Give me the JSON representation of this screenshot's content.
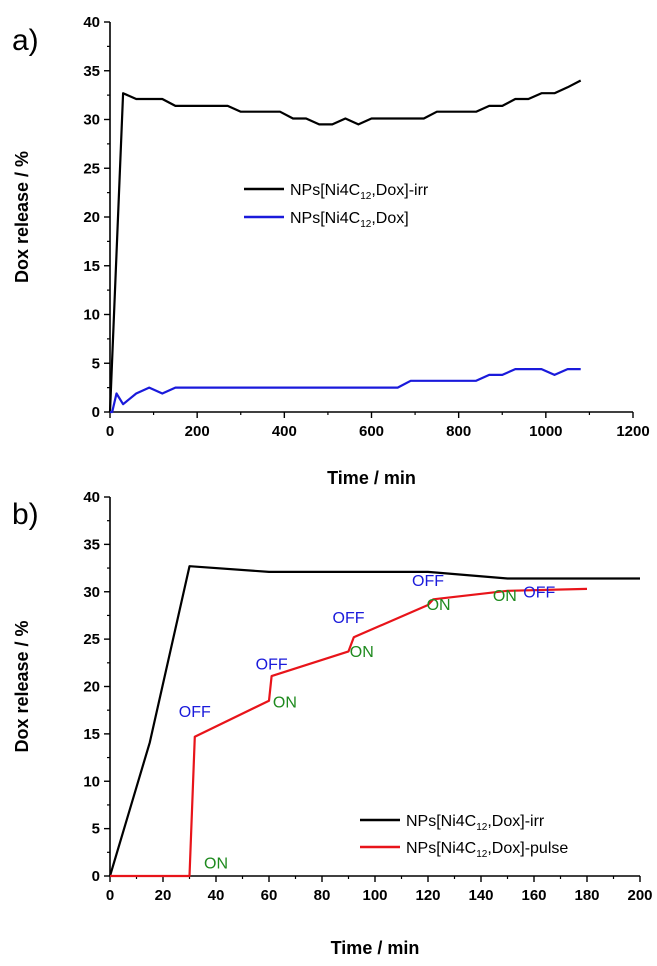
{
  "chart_data": [
    {
      "panel": "a)",
      "type": "line",
      "xlabel": "Time / min",
      "ylabel": "Dox release / %",
      "xlim": [
        0,
        1200
      ],
      "ylim": [
        0,
        40
      ],
      "xticks": [
        0,
        200,
        400,
        600,
        800,
        1000,
        1200
      ],
      "yticks": [
        0,
        5,
        10,
        15,
        20,
        25,
        30,
        35,
        40
      ],
      "grid": false,
      "legend_position": "center-right",
      "series": [
        {
          "name": "NPs[Ni4C12,Dox]-irr",
          "legend": {
            "prefix": "NPs[Ni4C",
            "sub": "12",
            "suffix": ",Dox]-irr"
          },
          "color": "#000000",
          "x": [
            0,
            30,
            60,
            90,
            120,
            150,
            180,
            210,
            240,
            270,
            300,
            330,
            360,
            390,
            420,
            450,
            480,
            510,
            540,
            570,
            600,
            630,
            660,
            690,
            720,
            750,
            780,
            810,
            840,
            870,
            900,
            930,
            960,
            990,
            1020,
            1050,
            1080
          ],
          "y": [
            0,
            32.7,
            32.1,
            32.1,
            32.1,
            31.4,
            31.4,
            31.4,
            31.4,
            31.4,
            30.8,
            30.8,
            30.8,
            30.8,
            30.1,
            30.1,
            29.5,
            29.5,
            30.1,
            29.5,
            30.1,
            30.1,
            30.1,
            30.1,
            30.1,
            30.8,
            30.8,
            30.8,
            30.8,
            31.4,
            31.4,
            32.1,
            32.1,
            32.7,
            32.7,
            33.3,
            34.0
          ]
        },
        {
          "name": "NPs[Ni4C12,Dox]",
          "legend": {
            "prefix": "NPs[Ni4C",
            "sub": "12",
            "suffix": ",Dox]"
          },
          "color": "#1a1adb",
          "x": [
            0,
            5,
            15,
            30,
            60,
            90,
            120,
            150,
            180,
            240,
            300,
            360,
            420,
            480,
            540,
            600,
            660,
            690,
            720,
            780,
            840,
            870,
            900,
            930,
            960,
            990,
            1020,
            1050,
            1080
          ],
          "y": [
            0,
            0,
            1.9,
            0.8,
            1.9,
            2.5,
            1.9,
            2.5,
            2.5,
            2.5,
            2.5,
            2.5,
            2.5,
            2.5,
            2.5,
            2.5,
            2.5,
            3.2,
            3.2,
            3.2,
            3.2,
            3.8,
            3.8,
            4.4,
            4.4,
            4.4,
            3.8,
            4.4,
            4.4
          ]
        }
      ]
    },
    {
      "panel": "b)",
      "type": "line",
      "xlabel": "Time / min",
      "ylabel": "Dox release / %",
      "xlim": [
        0,
        200
      ],
      "ylim": [
        0,
        40
      ],
      "xticks": [
        0,
        20,
        40,
        60,
        80,
        100,
        120,
        140,
        160,
        180,
        200
      ],
      "yticks": [
        0,
        5,
        10,
        15,
        20,
        25,
        30,
        35,
        40
      ],
      "grid": false,
      "legend_position": "bottom-right",
      "series": [
        {
          "name": "NPs[Ni4C12,Dox]-irr",
          "legend": {
            "prefix": "NPs[Ni4C",
            "sub": "12",
            "suffix": ",Dox]-irr"
          },
          "color": "#000000",
          "x": [
            0,
            15,
            30,
            60,
            90,
            120,
            150,
            180,
            200
          ],
          "y": [
            0,
            14.1,
            32.7,
            32.1,
            32.1,
            32.1,
            31.4,
            31.4,
            31.4
          ]
        },
        {
          "name": "NPs[Ni4C12,Dox]-pulse",
          "legend": {
            "prefix": "NPs[Ni4C",
            "sub": "12",
            "suffix": ",Dox]-pulse"
          },
          "color": "#e8141a",
          "x": [
            0,
            30,
            32,
            60,
            61,
            90,
            92,
            120,
            122,
            150,
            180
          ],
          "y": [
            0,
            0,
            14.7,
            18.5,
            21.1,
            23.7,
            25.2,
            28.6,
            29.2,
            30.1,
            30.3
          ]
        }
      ],
      "annotations": [
        {
          "text": "ON",
          "x": 40,
          "y": 0.8,
          "color": "#1e8a1e"
        },
        {
          "text": "OFF",
          "x": 32,
          "y": 16.8,
          "color": "#1a1adb"
        },
        {
          "text": "ON",
          "x": 66,
          "y": 17.8,
          "color": "#1e8a1e"
        },
        {
          "text": "OFF",
          "x": 61,
          "y": 21.8,
          "color": "#1a1adb"
        },
        {
          "text": "ON",
          "x": 95,
          "y": 23.1,
          "color": "#1e8a1e"
        },
        {
          "text": "OFF",
          "x": 90,
          "y": 26.7,
          "color": "#1a1adb"
        },
        {
          "text": "ON",
          "x": 124,
          "y": 28.1,
          "color": "#1e8a1e"
        },
        {
          "text": "OFF",
          "x": 120,
          "y": 30.6,
          "color": "#1a1adb"
        },
        {
          "text": "ON",
          "x": 149,
          "y": 29.0,
          "color": "#1e8a1e"
        },
        {
          "text": "OFF",
          "x": 162,
          "y": 29.4,
          "color": "#1a1adb"
        }
      ]
    }
  ]
}
